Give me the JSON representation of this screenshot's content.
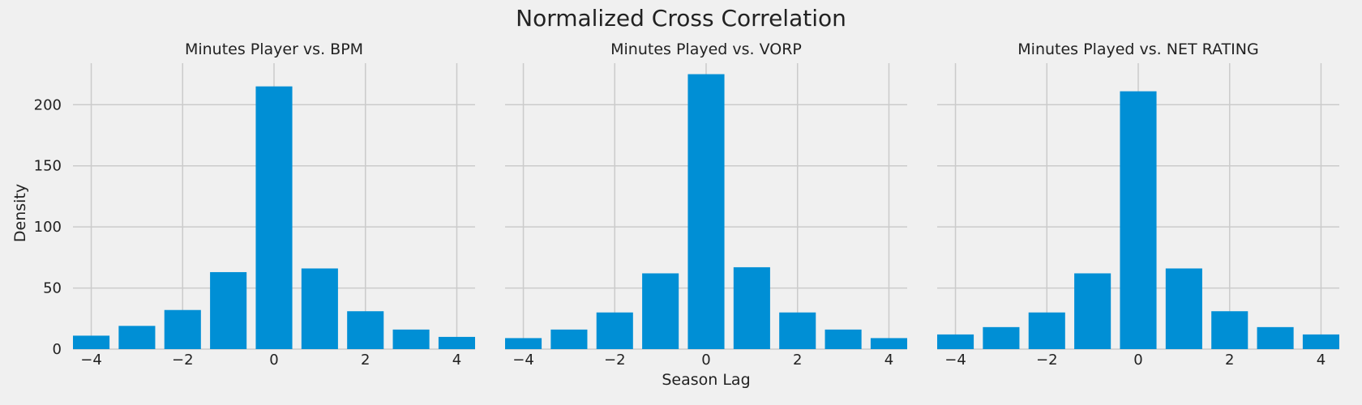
{
  "figure": {
    "title": "Normalized Cross Correlation",
    "bar_color": "#008fd5",
    "background": "#f0f0f0"
  },
  "chart_data": [
    {
      "type": "bar",
      "title": "Minutes Player vs. BPM",
      "xlabel": "",
      "ylabel": "Density",
      "x": [
        -4,
        -3,
        -2,
        -1,
        0,
        1,
        2,
        3,
        4
      ],
      "values": [
        11,
        19,
        32,
        63,
        215,
        66,
        31,
        16,
        10
      ],
      "xticks": [
        -4,
        -2,
        0,
        2,
        4
      ],
      "xtick_labels": [
        "−4",
        "−2",
        "0",
        "2",
        "4"
      ],
      "yticks": [
        0,
        50,
        100,
        150,
        200
      ],
      "ylim": [
        0,
        234
      ],
      "grid": true
    },
    {
      "type": "bar",
      "title": "Minutes Played vs. VORP",
      "xlabel": "Season Lag",
      "ylabel": "",
      "x": [
        -4,
        -3,
        -2,
        -1,
        0,
        1,
        2,
        3,
        4
      ],
      "values": [
        9,
        16,
        30,
        62,
        225,
        67,
        30,
        16,
        9
      ],
      "xticks": [
        -4,
        -2,
        0,
        2,
        4
      ],
      "xtick_labels": [
        "−4",
        "−2",
        "0",
        "2",
        "4"
      ],
      "yticks": [
        0,
        50,
        100,
        150,
        200
      ],
      "ylim": [
        0,
        234
      ],
      "grid": true
    },
    {
      "type": "bar",
      "title": "Minutes Played vs. NET RATING",
      "xlabel": "",
      "ylabel": "",
      "x": [
        -4,
        -3,
        -2,
        -1,
        0,
        1,
        2,
        3,
        4
      ],
      "values": [
        12,
        18,
        30,
        62,
        211,
        66,
        31,
        18,
        12
      ],
      "xticks": [
        -4,
        -2,
        0,
        2,
        4
      ],
      "xtick_labels": [
        "−4",
        "−2",
        "0",
        "2",
        "4"
      ],
      "yticks": [
        0,
        50,
        100,
        150,
        200
      ],
      "ylim": [
        0,
        234
      ],
      "grid": true
    }
  ]
}
